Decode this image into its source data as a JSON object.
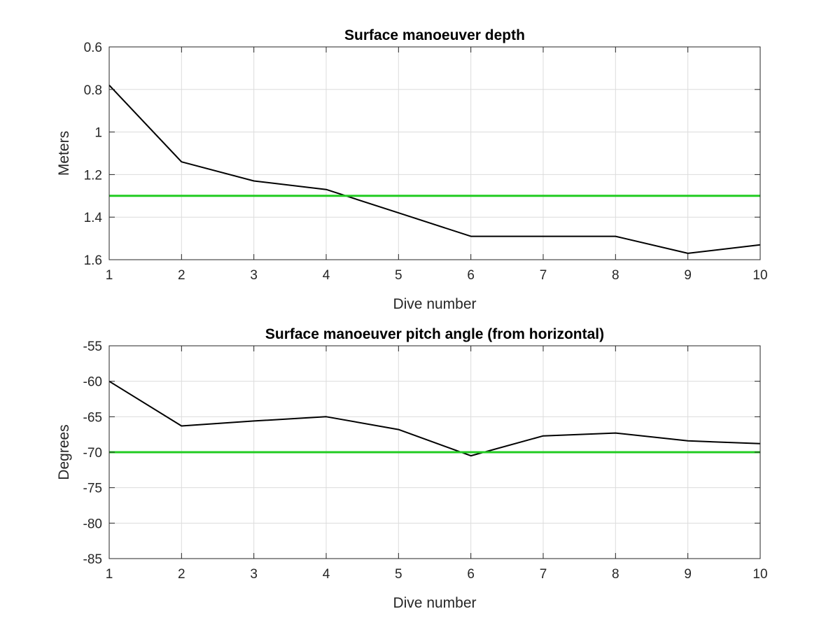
{
  "chart_data": [
    {
      "type": "line",
      "title": "Surface manoeuver depth",
      "xlabel": "Dive number",
      "ylabel": "Meters",
      "x": [
        1,
        2,
        3,
        4,
        5,
        6,
        7,
        8,
        9,
        10
      ],
      "xlim": [
        1,
        10
      ],
      "ylim": [
        0.6,
        1.6
      ],
      "y_reversed": true,
      "xticks": [
        "1",
        "2",
        "3",
        "4",
        "5",
        "6",
        "7",
        "8",
        "9",
        "10"
      ],
      "yticks": [
        "0.6",
        "0.8",
        "1",
        "1.2",
        "1.4",
        "1.6"
      ],
      "grid": true,
      "series": [
        {
          "values": [
            0.78,
            1.14,
            1.23,
            1.27,
            1.38,
            1.49,
            1.49,
            1.49,
            1.57,
            1.53
          ],
          "color": "#000000"
        },
        {
          "values": [
            1.3,
            1.3,
            1.3,
            1.3,
            1.3,
            1.3,
            1.3,
            1.3,
            1.3,
            1.3
          ],
          "color": "#22cc22"
        }
      ]
    },
    {
      "type": "line",
      "title": "Surface manoeuver pitch angle (from horizontal)",
      "xlabel": "Dive number",
      "ylabel": "Degrees",
      "x": [
        1,
        2,
        3,
        4,
        5,
        6,
        7,
        8,
        9,
        10
      ],
      "xlim": [
        1,
        10
      ],
      "ylim": [
        -85,
        -55
      ],
      "y_reversed": false,
      "xticks": [
        "1",
        "2",
        "3",
        "4",
        "5",
        "6",
        "7",
        "8",
        "9",
        "10"
      ],
      "yticks": [
        "-55",
        "-60",
        "-65",
        "-70",
        "-75",
        "-80",
        "-85"
      ],
      "grid": true,
      "series": [
        {
          "values": [
            -60,
            -66.3,
            -65.6,
            -65,
            -66.8,
            -70.5,
            -67.7,
            -67.3,
            -68.4,
            -68.8
          ],
          "color": "#000000"
        },
        {
          "values": [
            -70,
            -70,
            -70,
            -70,
            -70,
            -70,
            -70,
            -70,
            -70,
            -70
          ],
          "color": "#22cc22"
        }
      ]
    }
  ]
}
